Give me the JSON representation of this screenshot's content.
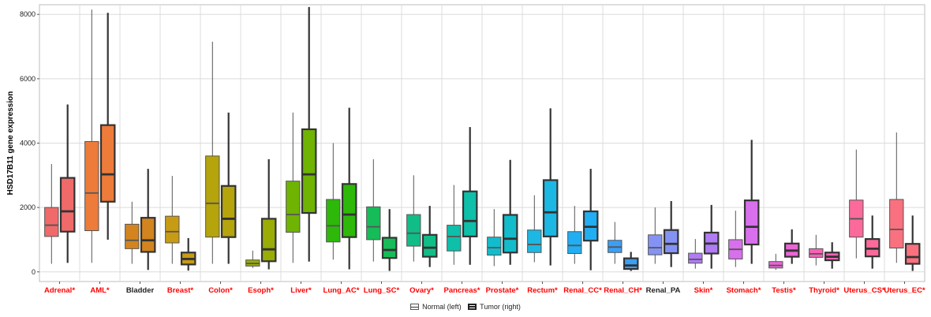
{
  "chart_data": {
    "type": "boxplot",
    "ylabel": "HSD17B11 gene expression",
    "ylim": [
      -300,
      8300
    ],
    "yticks": [
      0,
      2000,
      4000,
      6000,
      8000
    ],
    "grid": true,
    "legend_position": "bottom",
    "legend": [
      {
        "label": "Normal (left)"
      },
      {
        "label": "Tumor (right)"
      }
    ],
    "categories": [
      {
        "label": "Adrenal*",
        "significant": true,
        "color": "#f06a6a",
        "normal": {
          "min": 250,
          "q1": 1100,
          "median": 1450,
          "q3": 2000,
          "max": 3350
        },
        "tumor": {
          "min": 280,
          "q1": 1250,
          "median": 1880,
          "q3": 2920,
          "max": 5200
        }
      },
      {
        "label": "AML*",
        "significant": true,
        "color": "#ed7b3a",
        "normal": {
          "min": 280,
          "q1": 1280,
          "median": 2450,
          "q3": 4050,
          "max": 8150
        },
        "tumor": {
          "min": 1000,
          "q1": 2180,
          "median": 3030,
          "q3": 4560,
          "max": 8050
        }
      },
      {
        "label": "Bladder",
        "significant": false,
        "color": "#d3841e",
        "normal": {
          "min": 250,
          "q1": 720,
          "median": 980,
          "q3": 1480,
          "max": 2180
        },
        "tumor": {
          "min": 60,
          "q1": 620,
          "median": 980,
          "q3": 1680,
          "max": 3200
        }
      },
      {
        "label": "Breast*",
        "significant": true,
        "color": "#c89b14",
        "normal": {
          "min": 250,
          "q1": 900,
          "median": 1250,
          "q3": 1730,
          "max": 2980
        },
        "tumor": {
          "min": 40,
          "q1": 230,
          "median": 400,
          "q3": 600,
          "max": 1050
        }
      },
      {
        "label": "Colon*",
        "significant": true,
        "color": "#b5a40b",
        "normal": {
          "min": 250,
          "q1": 1080,
          "median": 2130,
          "q3": 3600,
          "max": 7150
        },
        "tumor": {
          "min": 250,
          "q1": 1080,
          "median": 1650,
          "q3": 2670,
          "max": 4950
        }
      },
      {
        "label": "Esoph*",
        "significant": true,
        "color": "#9aac06",
        "normal": {
          "min": 120,
          "q1": 180,
          "median": 260,
          "q3": 370,
          "max": 660
        },
        "tumor": {
          "min": 80,
          "q1": 330,
          "median": 700,
          "q3": 1650,
          "max": 3500
        }
      },
      {
        "label": "Liver*",
        "significant": true,
        "color": "#6fb303",
        "normal": {
          "min": 280,
          "q1": 1230,
          "median": 1780,
          "q3": 2820,
          "max": 4950
        },
        "tumor": {
          "min": 320,
          "q1": 1830,
          "median": 3030,
          "q3": 4430,
          "max": 8230
        }
      },
      {
        "label": "Lung_AC*",
        "significant": true,
        "color": "#2db80a",
        "normal": {
          "min": 380,
          "q1": 930,
          "median": 1430,
          "q3": 2250,
          "max": 4000
        },
        "tumor": {
          "min": 80,
          "q1": 1080,
          "median": 1780,
          "q3": 2730,
          "max": 5100
        }
      },
      {
        "label": "Lung_SC*",
        "significant": true,
        "color": "#16bc58",
        "normal": {
          "min": 320,
          "q1": 1000,
          "median": 1400,
          "q3": 2020,
          "max": 3500
        },
        "tumor": {
          "min": 30,
          "q1": 430,
          "median": 680,
          "q3": 1060,
          "max": 1950
        }
      },
      {
        "label": "Ovary*",
        "significant": true,
        "color": "#11bd86",
        "normal": {
          "min": 320,
          "q1": 800,
          "median": 1200,
          "q3": 1780,
          "max": 3000
        },
        "tumor": {
          "min": 150,
          "q1": 470,
          "median": 750,
          "q3": 1150,
          "max": 2050
        }
      },
      {
        "label": "Pancreas*",
        "significant": true,
        "color": "#0ebfa9",
        "normal": {
          "min": 220,
          "q1": 650,
          "median": 1100,
          "q3": 1450,
          "max": 2700
        },
        "tumor": {
          "min": 220,
          "q1": 1100,
          "median": 1580,
          "q3": 2500,
          "max": 4500
        }
      },
      {
        "label": "Prostate*",
        "significant": true,
        "color": "#12bccb",
        "normal": {
          "min": 180,
          "q1": 520,
          "median": 750,
          "q3": 1080,
          "max": 1950
        },
        "tumor": {
          "min": 220,
          "q1": 600,
          "median": 1030,
          "q3": 1770,
          "max": 3480
        }
      },
      {
        "label": "Rectum*",
        "significant": true,
        "color": "#1cb8e3",
        "normal": {
          "min": 300,
          "q1": 600,
          "median": 850,
          "q3": 1300,
          "max": 2380
        },
        "tumor": {
          "min": 200,
          "q1": 1100,
          "median": 1850,
          "q3": 2850,
          "max": 5080
        }
      },
      {
        "label": "Renal_CC*",
        "significant": true,
        "color": "#22aef2",
        "normal": {
          "min": 250,
          "q1": 570,
          "median": 820,
          "q3": 1250,
          "max": 2050
        },
        "tumor": {
          "min": 50,
          "q1": 970,
          "median": 1400,
          "q3": 1880,
          "max": 3200
        }
      },
      {
        "label": "Renal_CH*",
        "significant": true,
        "color": "#3b9ff5",
        "normal": {
          "min": 250,
          "q1": 600,
          "median": 770,
          "q3": 980,
          "max": 1550
        },
        "tumor": {
          "min": 30,
          "q1": 90,
          "median": 200,
          "q3": 420,
          "max": 620
        }
      },
      {
        "label": "Renal_PA",
        "significant": false,
        "color": "#8493f3",
        "normal": {
          "min": 250,
          "q1": 530,
          "median": 750,
          "q3": 1150,
          "max": 2000
        },
        "tumor": {
          "min": 150,
          "q1": 580,
          "median": 870,
          "q3": 1300,
          "max": 2200
        }
      },
      {
        "label": "Skin*",
        "significant": true,
        "color": "#b07cf4",
        "normal": {
          "min": 100,
          "q1": 270,
          "median": 390,
          "q3": 580,
          "max": 1020
        },
        "tumor": {
          "min": 100,
          "q1": 570,
          "median": 880,
          "q3": 1220,
          "max": 2080
        }
      },
      {
        "label": "Stomach*",
        "significant": true,
        "color": "#d86fec",
        "normal": {
          "min": 150,
          "q1": 400,
          "median": 700,
          "q3": 1000,
          "max": 1900
        },
        "tumor": {
          "min": 250,
          "q1": 850,
          "median": 1400,
          "q3": 2220,
          "max": 4100
        }
      },
      {
        "label": "Testis*",
        "significant": true,
        "color": "#ea65d6",
        "normal": {
          "min": 60,
          "q1": 120,
          "median": 200,
          "q3": 320,
          "max": 560
        },
        "tumor": {
          "min": 250,
          "q1": 470,
          "median": 660,
          "q3": 880,
          "max": 1320
        }
      },
      {
        "label": "Thyroid*",
        "significant": true,
        "color": "#f563b5",
        "normal": {
          "min": 200,
          "q1": 450,
          "median": 560,
          "q3": 720,
          "max": 1150
        },
        "tumor": {
          "min": 100,
          "q1": 360,
          "median": 470,
          "q3": 600,
          "max": 920
        }
      },
      {
        "label": "Uterus_CS*",
        "significant": true,
        "color": "#fb6a9a",
        "normal": {
          "min": 420,
          "q1": 1080,
          "median": 1650,
          "q3": 2230,
          "max": 3800
        },
        "tumor": {
          "min": 100,
          "q1": 480,
          "median": 720,
          "q3": 1020,
          "max": 1750
        }
      },
      {
        "label": "Uterus_EC*",
        "significant": true,
        "color": "#f9717f",
        "normal": {
          "min": 280,
          "q1": 740,
          "median": 1320,
          "q3": 2250,
          "max": 4330
        },
        "tumor": {
          "min": 30,
          "q1": 250,
          "median": 460,
          "q3": 870,
          "max": 1750
        }
      }
    ]
  },
  "styles": {
    "significant_label_color": "#ff0000",
    "plain_label_color": "#222222",
    "grid_color": "#dcdcdc",
    "panel_border_color": "#bdbdbd"
  }
}
